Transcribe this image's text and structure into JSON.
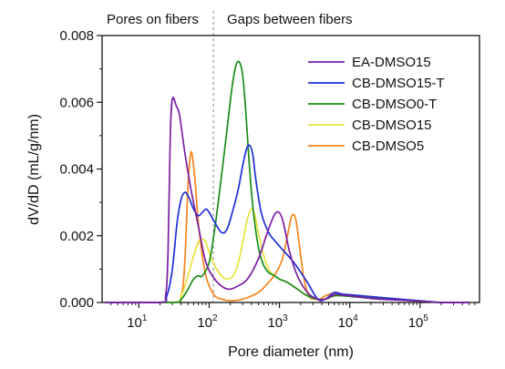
{
  "chart_data": {
    "type": "line",
    "title": "",
    "xlabel": "Pore diameter (nm)",
    "ylabel": "dV/dD (mL/g/nm)",
    "x_scale": "log",
    "xlim": [
      3,
      700000
    ],
    "ylim": [
      0,
      0.008
    ],
    "x_ticks": [
      {
        "value": 10,
        "base": "10",
        "exp": "1"
      },
      {
        "value": 100,
        "base": "10",
        "exp": "2"
      },
      {
        "value": 1000,
        "base": "10",
        "exp": "3"
      },
      {
        "value": 10000,
        "base": "10",
        "exp": "4"
      },
      {
        "value": 100000,
        "base": "10",
        "exp": "5"
      }
    ],
    "y_ticks": [
      "0.000",
      "0.002",
      "0.004",
      "0.006",
      "0.008"
    ],
    "y_tick_values": [
      0,
      0.002,
      0.004,
      0.006,
      0.008
    ],
    "grid": false,
    "legend_position": "top-right",
    "annotations": [
      {
        "text": "Pores on fibers",
        "region": "left of divider"
      },
      {
        "text": "Gaps between fibers",
        "region": "right of divider"
      }
    ],
    "divider_x": 115,
    "series": [
      {
        "name": "EA-DMSO15",
        "color": "#7b1fa2",
        "x": [
          3,
          20,
          24,
          26,
          28,
          30,
          34,
          38,
          45,
          55,
          70,
          90,
          120,
          160,
          200,
          260,
          350,
          500,
          700,
          900,
          1100,
          1400,
          1800,
          2500,
          3500,
          4500,
          5500,
          6500,
          8000,
          12000,
          20000,
          40000,
          100000,
          200000,
          500000
        ],
        "y": [
          0.0,
          0.0,
          0.0002,
          0.0015,
          0.005,
          0.0061,
          0.0059,
          0.0056,
          0.0045,
          0.0034,
          0.0023,
          0.0012,
          0.0007,
          0.00045,
          0.0004,
          0.0005,
          0.0007,
          0.0013,
          0.0022,
          0.0027,
          0.0025,
          0.0015,
          0.0008,
          0.0003,
          0.0001,
          0.0001,
          0.0002,
          0.00025,
          0.00022,
          0.00018,
          0.00012,
          8e-05,
          4e-05,
          0.0,
          0.0
        ]
      },
      {
        "name": "CB-DMSO15-T",
        "color": "#1f2fd6",
        "x": [
          3,
          20,
          25,
          30,
          35,
          40,
          45,
          50,
          55,
          60,
          70,
          80,
          90,
          100,
          120,
          150,
          180,
          220,
          260,
          300,
          340,
          380,
          420,
          460,
          550,
          700,
          900,
          1200,
          1600,
          2500,
          3500,
          4500,
          6000,
          8000,
          15000,
          40000,
          100000,
          200000,
          500000
        ],
        "y": [
          0.0,
          0.0,
          0.0002,
          0.001,
          0.0024,
          0.0031,
          0.0033,
          0.0032,
          0.003,
          0.0028,
          0.0026,
          0.0027,
          0.0028,
          0.0027,
          0.0024,
          0.0021,
          0.0022,
          0.0028,
          0.0034,
          0.0041,
          0.0046,
          0.0047,
          0.0044,
          0.0037,
          0.0027,
          0.0021,
          0.0018,
          0.0015,
          0.0012,
          0.0006,
          0.0001,
          0.0001,
          0.0003,
          0.00025,
          0.0002,
          0.00012,
          5e-05,
          0.0,
          0.0
        ]
      },
      {
        "name": "CB-DMSO0-T",
        "color": "#1a8c1a",
        "x": [
          3,
          30,
          40,
          50,
          60,
          70,
          80,
          100,
          120,
          150,
          180,
          210,
          240,
          270,
          300,
          330,
          360,
          400,
          450,
          520,
          600,
          700,
          850,
          1000,
          1300,
          1800,
          2500,
          3500,
          4500,
          6000,
          8000,
          15000,
          40000,
          100000,
          200000,
          500000
        ],
        "y": [
          0.0,
          0.0,
          0.0001,
          0.0004,
          0.0007,
          0.0008,
          0.0008,
          0.0012,
          0.0022,
          0.0038,
          0.0052,
          0.0064,
          0.0071,
          0.0072,
          0.0068,
          0.0058,
          0.0046,
          0.0033,
          0.0023,
          0.0015,
          0.0011,
          0.0009,
          0.0008,
          0.0007,
          0.0006,
          0.0004,
          0.0002,
          0.0001,
          0.0001,
          0.0002,
          0.0002,
          0.00015,
          0.0001,
          5e-05,
          0.0,
          0.0
        ]
      },
      {
        "name": "CB-DMSO15",
        "color": "#e6e23c",
        "x": [
          3,
          30,
          40,
          50,
          60,
          70,
          80,
          90,
          100,
          120,
          150,
          180,
          220,
          260,
          300,
          350,
          400,
          450,
          500,
          600,
          700,
          850,
          1000,
          1300,
          1800,
          2500,
          3500,
          4500,
          6000,
          8000,
          15000,
          40000,
          100000,
          200000,
          500000
        ],
        "y": [
          0.0,
          0.0,
          0.0002,
          0.0008,
          0.0014,
          0.0018,
          0.0019,
          0.0018,
          0.0015,
          0.0011,
          0.0008,
          0.0007,
          0.0008,
          0.0012,
          0.0018,
          0.0025,
          0.0028,
          0.0026,
          0.0021,
          0.0014,
          0.001,
          0.0008,
          0.0007,
          0.0006,
          0.0004,
          0.0002,
          0.0001,
          0.0001,
          0.0002,
          0.0002,
          0.00015,
          0.0001,
          5e-05,
          0.0,
          0.0
        ]
      },
      {
        "name": "CB-DMSO5",
        "color": "#f7831d",
        "x": [
          3,
          30,
          40,
          45,
          50,
          55,
          60,
          65,
          70,
          80,
          90,
          100,
          120,
          150,
          200,
          300,
          500,
          700,
          900,
          1100,
          1300,
          1500,
          1700,
          1900,
          2200,
          2600,
          3200,
          3800,
          4500,
          6000,
          8000,
          15000,
          40000,
          100000,
          200000,
          500000
        ],
        "y": [
          0.0,
          0.0,
          0.0002,
          0.0012,
          0.0035,
          0.0045,
          0.0041,
          0.0033,
          0.0024,
          0.0014,
          0.0008,
          0.0005,
          0.0002,
          0.0001,
          5e-05,
          0.0001,
          0.0003,
          0.0006,
          0.0009,
          0.0013,
          0.002,
          0.0026,
          0.0025,
          0.0018,
          0.0008,
          0.0002,
          0.0001,
          0.0001,
          0.0002,
          0.00028,
          0.00025,
          0.0002,
          0.00012,
          5e-05,
          0.0,
          0.0
        ]
      }
    ]
  }
}
